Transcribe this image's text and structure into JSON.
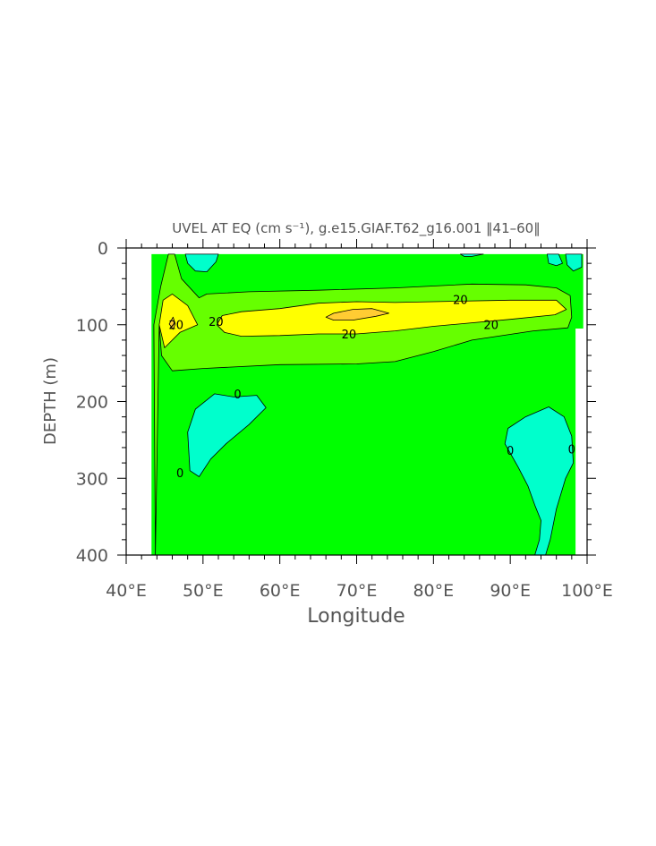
{
  "chart_data": {
    "type": "contour",
    "title": "UVEL AT EQ (cm s⁻¹), g.e15.GIAF.T62_g16.001 ‖41–60‖",
    "xlabel": "Longitude",
    "ylabel": "DEPTH (m)",
    "xlim": [
      40,
      100
    ],
    "ylim": [
      0,
      400
    ],
    "y_inverted": true,
    "x_ticks": [
      {
        "value": 40,
        "label": "40°E"
      },
      {
        "value": 50,
        "label": "50°E"
      },
      {
        "value": 60,
        "label": "60°E"
      },
      {
        "value": 70,
        "label": "70°E"
      },
      {
        "value": 80,
        "label": "80°E"
      },
      {
        "value": 90,
        "label": "90°E"
      },
      {
        "value": 100,
        "label": "100°E"
      }
    ],
    "y_ticks": [
      {
        "value": 0,
        "label": "0"
      },
      {
        "value": 100,
        "label": "100"
      },
      {
        "value": 200,
        "label": "200"
      },
      {
        "value": 300,
        "label": "300"
      },
      {
        "value": 400,
        "label": "400"
      }
    ],
    "x_minor_step": 2,
    "y_minor_step": 20,
    "colors": {
      "negative": "#00ffcc",
      "zero_to_10": "#00ff00",
      "ten_to_20": "#66ff00",
      "twenty_to_30": "#ffff00",
      "above_30": "#ffcc33",
      "contour_line": "#000000"
    },
    "data_domain": {
      "points": [
        [
          43.3,
          8
        ],
        [
          99.5,
          8
        ],
        [
          99.5,
          105
        ],
        [
          98.5,
          105
        ],
        [
          98.5,
          400
        ],
        [
          43.3,
          400
        ]
      ]
    },
    "regions": [
      {
        "level": "ten_to_20",
        "points": [
          [
            43.8,
            400
          ],
          [
            43.8,
            390
          ],
          [
            43.6,
            100
          ],
          [
            44.5,
            50
          ],
          [
            45.5,
            8
          ],
          [
            46.3,
            8
          ],
          [
            47.2,
            40
          ],
          [
            49.5,
            65
          ],
          [
            50.5,
            60
          ],
          [
            56,
            57
          ],
          [
            65,
            55
          ],
          [
            75,
            52
          ],
          [
            85,
            47
          ],
          [
            92,
            48
          ],
          [
            96,
            52
          ],
          [
            97.8,
            62
          ],
          [
            98,
            90
          ],
          [
            97.5,
            104
          ],
          [
            93,
            108
          ],
          [
            85,
            120
          ],
          [
            80,
            135
          ],
          [
            75,
            148
          ],
          [
            70,
            151
          ],
          [
            60,
            152
          ],
          [
            50,
            157
          ],
          [
            46,
            160
          ],
          [
            44.6,
            140
          ],
          [
            44.3,
            100
          ]
        ]
      },
      {
        "level": "twenty_to_30",
        "points": [
          [
            44.3,
            100
          ],
          [
            44.8,
            68
          ],
          [
            46,
            60
          ],
          [
            48,
            75
          ],
          [
            49.3,
            100
          ],
          [
            47,
            110
          ],
          [
            45,
            130
          ]
        ]
      },
      {
        "level": "twenty_to_30",
        "points": [
          [
            51.8,
            100
          ],
          [
            52.5,
            88
          ],
          [
            55,
            83
          ],
          [
            60,
            79
          ],
          [
            65,
            72
          ],
          [
            70,
            70
          ],
          [
            75,
            71
          ],
          [
            80,
            70
          ],
          [
            90,
            68
          ],
          [
            96,
            68
          ],
          [
            97.3,
            80
          ],
          [
            95.8,
            87
          ],
          [
            90,
            93
          ],
          [
            80,
            102
          ],
          [
            75,
            108
          ],
          [
            70,
            112
          ],
          [
            65,
            112
          ],
          [
            60,
            114
          ],
          [
            55,
            115
          ],
          [
            52.8,
            110
          ]
        ]
      },
      {
        "level": "above_30",
        "points": [
          [
            45.6,
            99
          ],
          [
            46.1,
            90
          ],
          [
            46.4,
            99
          ],
          [
            46.1,
            106
          ]
        ]
      },
      {
        "level": "above_30",
        "points": [
          [
            66,
            90
          ],
          [
            67,
            85
          ],
          [
            69.5,
            80
          ],
          [
            72,
            79
          ],
          [
            74.2,
            85
          ],
          [
            72.5,
            89
          ],
          [
            69.5,
            94
          ],
          [
            67,
            94
          ]
        ]
      },
      {
        "level": "negative",
        "points": [
          [
            47.7,
            8
          ],
          [
            52,
            8
          ],
          [
            51.7,
            18
          ],
          [
            50.5,
            31
          ],
          [
            49,
            30
          ],
          [
            48,
            20
          ]
        ]
      },
      {
        "level": "negative",
        "points": [
          [
            83.5,
            8
          ],
          [
            86.5,
            8
          ],
          [
            85,
            11
          ],
          [
            84,
            11
          ]
        ]
      },
      {
        "level": "negative",
        "points": [
          [
            94.8,
            8
          ],
          [
            96.3,
            8
          ],
          [
            96.8,
            20
          ],
          [
            96,
            23
          ],
          [
            95,
            20
          ]
        ]
      },
      {
        "level": "negative",
        "points": [
          [
            97.2,
            8
          ],
          [
            99.3,
            8
          ],
          [
            99.3,
            25
          ],
          [
            98.2,
            30
          ],
          [
            97.4,
            22
          ]
        ]
      },
      {
        "level": "negative",
        "points": [
          [
            48,
            240
          ],
          [
            49,
            210
          ],
          [
            51.5,
            190
          ],
          [
            54,
            194
          ],
          [
            57,
            192
          ],
          [
            58.2,
            208
          ],
          [
            56,
            230
          ],
          [
            53,
            255
          ],
          [
            51,
            275
          ],
          [
            49.5,
            298
          ],
          [
            48.3,
            290
          ]
        ]
      },
      {
        "level": "negative",
        "points": [
          [
            89.3,
            255
          ],
          [
            89.7,
            235
          ],
          [
            92,
            220
          ],
          [
            95,
            207
          ],
          [
            97,
            220
          ],
          [
            98,
            245
          ],
          [
            98.2,
            280
          ],
          [
            97.2,
            300
          ],
          [
            96,
            340
          ],
          [
            95.2,
            380
          ],
          [
            94.6,
            400
          ],
          [
            93.2,
            400
          ],
          [
            93.8,
            380
          ],
          [
            94,
            355
          ],
          [
            93.2,
            335
          ],
          [
            92.3,
            310
          ],
          [
            91,
            285
          ]
        ]
      }
    ],
    "contour_labels": [
      {
        "text": "20",
        "x": 83.5,
        "y": 68
      },
      {
        "text": "20",
        "x": 87.5,
        "y": 101
      },
      {
        "text": "20",
        "x": 69,
        "y": 113
      },
      {
        "text": "20",
        "x": 46.5,
        "y": 101
      },
      {
        "text": "20",
        "x": 51.7,
        "y": 97
      },
      {
        "text": "0",
        "x": 54.5,
        "y": 191
      },
      {
        "text": "0",
        "x": 47,
        "y": 294
      },
      {
        "text": "0",
        "x": 90,
        "y": 265
      },
      {
        "text": "0",
        "x": 98,
        "y": 263
      }
    ]
  }
}
